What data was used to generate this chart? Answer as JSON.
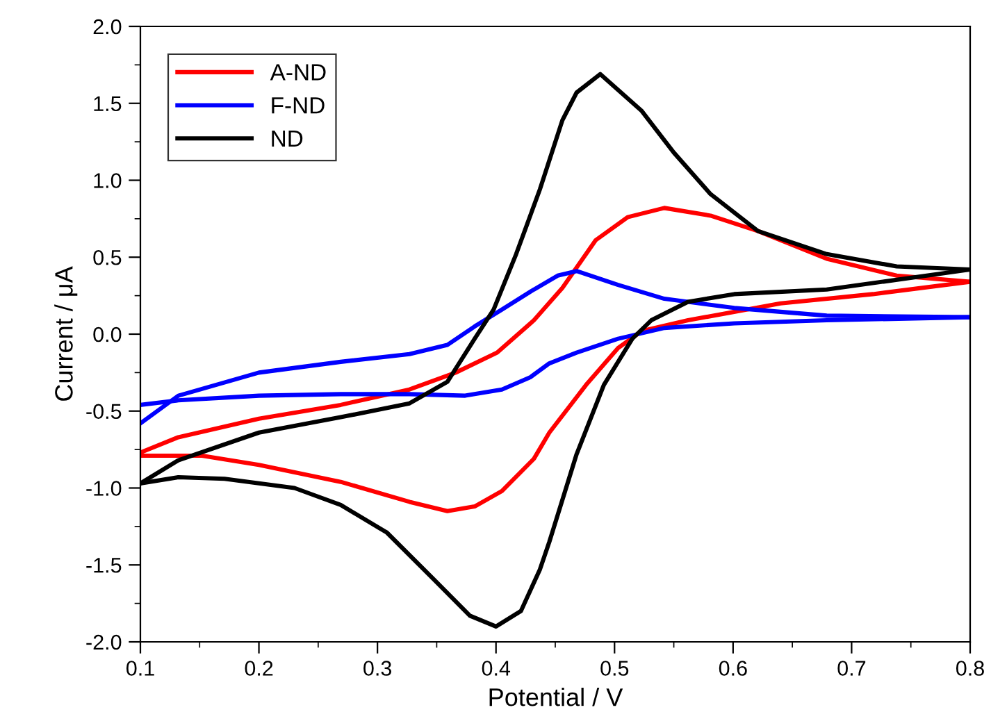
{
  "chart_data": {
    "type": "line",
    "xlabel": "Potential / V",
    "ylabel": "Current / μA",
    "xlim": [
      0.1,
      0.8
    ],
    "ylim": [
      -2.0,
      2.0
    ],
    "xticks": [
      0.1,
      {
        "value": 0.15,
        "label": null
      },
      0.2,
      {
        "value": 0.25,
        "label": null
      },
      0.3,
      {
        "value": 0.35,
        "label": null
      },
      0.4,
      {
        "value": 0.45,
        "label": null
      },
      0.5,
      {
        "value": 0.55,
        "label": null
      },
      0.6,
      {
        "value": 0.65,
        "label": null
      },
      0.7,
      {
        "value": 0.75,
        "label": null
      },
      0.8
    ],
    "yticks": [
      {
        "value": -2,
        "label": "-2.0"
      },
      {
        "value": -1.75,
        "label": null
      },
      -1.5,
      {
        "value": -1.25,
        "label": null
      },
      {
        "value": -1,
        "label": "-1.0"
      },
      {
        "value": -0.75,
        "label": null
      },
      -0.5,
      {
        "value": -0.25,
        "label": null
      },
      {
        "value": 0,
        "label": "0.0"
      },
      {
        "value": 0.25,
        "label": null
      },
      0.5,
      {
        "value": 0.75,
        "label": null
      },
      {
        "value": 1,
        "label": "1.0"
      },
      {
        "value": 1.25,
        "label": null
      },
      1.5,
      {
        "value": 1.75,
        "label": null
      },
      {
        "value": 2,
        "label": "2.0"
      }
    ],
    "legend": "top left",
    "grid": false,
    "marker": "none",
    "line_style": "solid",
    "series": [
      {
        "name": "A-ND",
        "color": "#ff0000",
        "x": [
          0.1,
          0.132,
          0.2,
          0.269,
          0.327,
          0.366,
          0.401,
          0.432,
          0.456,
          0.484,
          0.511,
          0.542,
          0.581,
          0.621,
          0.679,
          0.738,
          0.8
        ],
        "values": [
          -0.77,
          -0.67,
          -0.55,
          -0.46,
          -0.36,
          -0.25,
          -0.12,
          0.09,
          0.3,
          0.61,
          0.76,
          0.82,
          0.77,
          0.67,
          0.49,
          0.38,
          0.34
        ]
      },
      {
        "color": "#ff0000",
        "x": [
          0.1,
          0.152,
          0.2,
          0.269,
          0.327,
          0.359,
          0.382,
          0.405,
          0.432,
          0.445,
          0.476,
          0.503,
          0.523,
          0.562,
          0.64,
          0.718,
          0.8
        ],
        "values": [
          -0.79,
          -0.79,
          -0.85,
          -0.96,
          -1.09,
          -1.15,
          -1.12,
          -1.02,
          -0.81,
          -0.64,
          -0.33,
          -0.09,
          0.02,
          0.09,
          0.2,
          0.26,
          0.34
        ]
      },
      {
        "name": "F-ND",
        "color": "#0000ff",
        "x": [
          0.1,
          0.132,
          0.2,
          0.269,
          0.327,
          0.359,
          0.382,
          0.405,
          0.432,
          0.452,
          0.468,
          0.503,
          0.542,
          0.601,
          0.679,
          0.8
        ],
        "values": [
          -0.58,
          -0.4,
          -0.25,
          -0.18,
          -0.13,
          -0.07,
          0.05,
          0.16,
          0.29,
          0.38,
          0.41,
          0.32,
          0.23,
          0.17,
          0.12,
          0.11
        ]
      },
      {
        "color": "#0000ff",
        "x": [
          0.1,
          0.132,
          0.2,
          0.269,
          0.327,
          0.374,
          0.405,
          0.429,
          0.445,
          0.468,
          0.503,
          0.542,
          0.601,
          0.679,
          0.8
        ],
        "values": [
          -0.46,
          -0.43,
          -0.4,
          -0.39,
          -0.39,
          -0.4,
          -0.36,
          -0.28,
          -0.19,
          -0.12,
          -0.03,
          0.04,
          0.07,
          0.09,
          0.11
        ]
      },
      {
        "name": "ND",
        "color": "#000000",
        "x": [
          0.1,
          0.132,
          0.2,
          0.269,
          0.327,
          0.359,
          0.382,
          0.398,
          0.417,
          0.437,
          0.456,
          0.468,
          0.488,
          0.523,
          0.55,
          0.581,
          0.621,
          0.679,
          0.738,
          0.8
        ],
        "values": [
          -0.97,
          -0.82,
          -0.64,
          -0.54,
          -0.45,
          -0.31,
          -0.03,
          0.16,
          0.52,
          0.94,
          1.39,
          1.57,
          1.69,
          1.45,
          1.18,
          0.91,
          0.67,
          0.52,
          0.44,
          0.42
        ]
      },
      {
        "color": "#000000",
        "x": [
          0.1,
          0.132,
          0.171,
          0.23,
          0.269,
          0.308,
          0.347,
          0.378,
          0.4,
          0.421,
          0.437,
          0.445,
          0.468,
          0.491,
          0.515,
          0.531,
          0.562,
          0.601,
          0.679,
          0.8
        ],
        "values": [
          -0.97,
          -0.93,
          -0.94,
          -1.0,
          -1.11,
          -1.29,
          -1.59,
          -1.83,
          -1.9,
          -1.8,
          -1.53,
          -1.35,
          -0.78,
          -0.33,
          -0.03,
          0.09,
          0.21,
          0.26,
          0.29,
          0.42
        ]
      }
    ]
  }
}
